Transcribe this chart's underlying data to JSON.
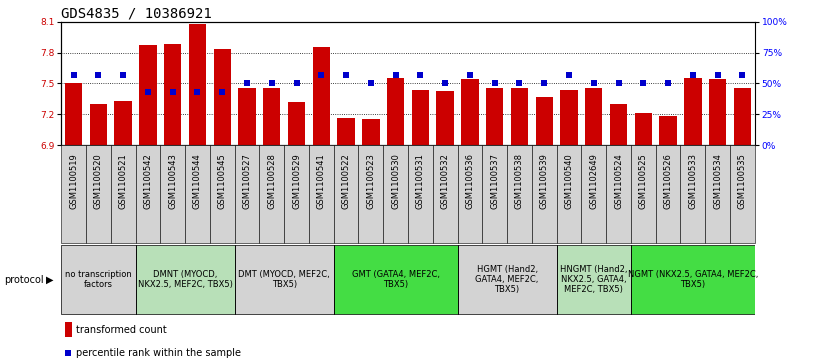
{
  "title": "GDS4835 / 10386921",
  "samples": [
    "GSM1100519",
    "GSM1100520",
    "GSM1100521",
    "GSM1100542",
    "GSM1100543",
    "GSM1100544",
    "GSM1100545",
    "GSM1100527",
    "GSM1100528",
    "GSM1100529",
    "GSM1100541",
    "GSM1100522",
    "GSM1100523",
    "GSM1100530",
    "GSM1100531",
    "GSM1100532",
    "GSM1100536",
    "GSM1100537",
    "GSM1100538",
    "GSM1100539",
    "GSM1100540",
    "GSM1102649",
    "GSM1100524",
    "GSM1100525",
    "GSM1100526",
    "GSM1100533",
    "GSM1100534",
    "GSM1100535"
  ],
  "bar_values": [
    7.5,
    7.3,
    7.33,
    7.87,
    7.88,
    8.08,
    7.84,
    7.46,
    7.46,
    7.32,
    7.85,
    7.16,
    7.15,
    7.55,
    7.44,
    7.43,
    7.54,
    7.46,
    7.46,
    7.37,
    7.44,
    7.46,
    7.3,
    7.21,
    7.18,
    7.55,
    7.54,
    7.46
  ],
  "dot_values": [
    57,
    57,
    57,
    43,
    43,
    43,
    43,
    50,
    50,
    50,
    57,
    57,
    50,
    57,
    57,
    50,
    57,
    50,
    50,
    50,
    57,
    50,
    50,
    50,
    50,
    57,
    57,
    57
  ],
  "protocols": [
    {
      "label": "no transcription\nfactors",
      "start": 0,
      "end": 3,
      "color": "#d3d3d3"
    },
    {
      "label": "DMNT (MYOCD,\nNKX2.5, MEF2C, TBX5)",
      "start": 3,
      "end": 7,
      "color": "#b8e0b8"
    },
    {
      "label": "DMT (MYOCD, MEF2C,\nTBX5)",
      "start": 7,
      "end": 11,
      "color": "#d3d3d3"
    },
    {
      "label": "GMT (GATA4, MEF2C,\nTBX5)",
      "start": 11,
      "end": 16,
      "color": "#44dd44"
    },
    {
      "label": "HGMT (Hand2,\nGATA4, MEF2C,\nTBX5)",
      "start": 16,
      "end": 20,
      "color": "#d3d3d3"
    },
    {
      "label": "HNGMT (Hand2,\nNKX2.5, GATA4,\nMEF2C, TBX5)",
      "start": 20,
      "end": 23,
      "color": "#b8e0b8"
    },
    {
      "label": "NGMT (NKX2.5, GATA4, MEF2C,\nTBX5)",
      "start": 23,
      "end": 28,
      "color": "#44dd44"
    }
  ],
  "ymin": 6.9,
  "ymax": 8.1,
  "yticks": [
    6.9,
    7.2,
    7.5,
    7.8,
    8.1
  ],
  "right_yticks": [
    0,
    25,
    50,
    75,
    100
  ],
  "bar_color": "#cc0000",
  "dot_color": "#0000cc",
  "bar_width": 0.7,
  "dot_size": 22,
  "dot_marker": "s",
  "title_fontsize": 10,
  "tick_fontsize": 6.5,
  "label_fontsize": 7,
  "sample_fontsize": 6,
  "protocol_label_fontsize": 6,
  "legend_fontsize": 7,
  "background_color": "#ffffff"
}
